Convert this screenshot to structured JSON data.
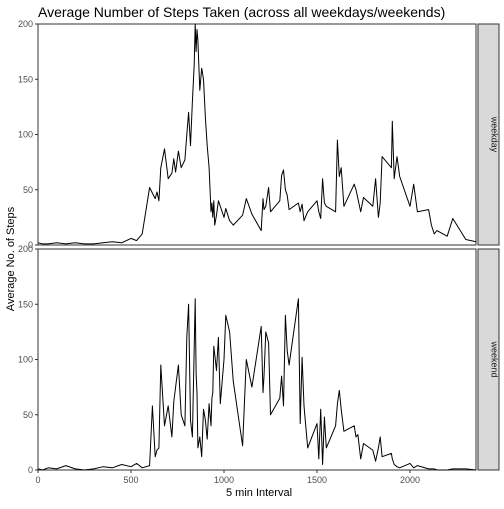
{
  "chart_data": {
    "type": "line",
    "title": "Average Number of Steps Taken (across all weekdays/weekends)",
    "xlabel": "5 min Interval",
    "ylabel": "Average No. of Steps",
    "xlim": [
      0,
      2355
    ],
    "ylim": [
      0,
      200
    ],
    "x_ticks": [
      0,
      500,
      1000,
      1500,
      2000
    ],
    "y_ticks": [
      0,
      50,
      100,
      150,
      200
    ],
    "grid": false,
    "facet_strip_position": "right",
    "panels": [
      {
        "name": "weekday",
        "x": [
          0,
          25,
          55,
          100,
          150,
          200,
          250,
          300,
          350,
          400,
          450,
          500,
          530,
          560,
          600,
          615,
          630,
          640,
          650,
          660,
          680,
          700,
          720,
          730,
          740,
          755,
          770,
          790,
          800,
          810,
          820,
          830,
          840,
          845,
          850,
          855,
          860,
          870,
          880,
          890,
          900,
          910,
          920,
          930,
          935,
          940,
          945,
          950,
          960,
          970,
          980,
          1000,
          1010,
          1030,
          1050,
          1100,
          1120,
          1150,
          1200,
          1210,
          1215,
          1225,
          1240,
          1250,
          1300,
          1310,
          1320,
          1330,
          1340,
          1350,
          1400,
          1410,
          1420,
          1430,
          1450,
          1500,
          1510,
          1520,
          1530,
          1540,
          1550,
          1600,
          1610,
          1620,
          1630,
          1645,
          1700,
          1710,
          1720,
          1735,
          1750,
          1800,
          1815,
          1830,
          1840,
          1850,
          1900,
          1905,
          1915,
          1930,
          1945,
          2000,
          2020,
          2040,
          2100,
          2115,
          2130,
          2145,
          2200,
          2230,
          2300,
          2355
        ],
        "y": [
          2,
          1,
          1,
          2,
          1,
          2,
          1,
          1,
          2,
          3,
          2,
          6,
          4,
          10,
          52,
          47,
          42,
          48,
          40,
          70,
          87,
          60,
          65,
          78,
          66,
          85,
          70,
          77,
          100,
          120,
          90,
          130,
          163,
          200,
          175,
          195,
          185,
          140,
          160,
          150,
          115,
          90,
          70,
          30,
          38,
          25,
          40,
          18,
          27,
          40,
          35,
          25,
          33,
          22,
          18,
          27,
          42,
          28,
          13,
          42,
          32,
          35,
          52,
          30,
          40,
          63,
          68,
          50,
          45,
          32,
          38,
          30,
          37,
          22,
          30,
          40,
          30,
          24,
          60,
          38,
          35,
          30,
          95,
          62,
          70,
          35,
          55,
          50,
          42,
          30,
          43,
          35,
          60,
          25,
          38,
          80,
          70,
          112,
          60,
          80,
          62,
          35,
          55,
          30,
          32,
          18,
          10,
          13,
          8,
          24,
          5,
          3
        ]
      },
      {
        "name": "weekend",
        "x": [
          0,
          25,
          55,
          100,
          150,
          200,
          250,
          300,
          350,
          400,
          450,
          500,
          530,
          560,
          600,
          615,
          630,
          640,
          650,
          660,
          680,
          700,
          720,
          730,
          740,
          755,
          770,
          790,
          800,
          810,
          820,
          830,
          840,
          845,
          850,
          855,
          860,
          870,
          880,
          890,
          900,
          910,
          920,
          930,
          935,
          940,
          945,
          950,
          960,
          970,
          980,
          1000,
          1010,
          1030,
          1050,
          1100,
          1120,
          1150,
          1200,
          1210,
          1215,
          1225,
          1240,
          1250,
          1300,
          1310,
          1320,
          1330,
          1340,
          1350,
          1400,
          1410,
          1420,
          1430,
          1450,
          1500,
          1510,
          1520,
          1530,
          1540,
          1550,
          1600,
          1610,
          1620,
          1630,
          1645,
          1700,
          1710,
          1720,
          1735,
          1750,
          1800,
          1815,
          1830,
          1840,
          1850,
          1900,
          1905,
          1915,
          1930,
          1945,
          2000,
          2020,
          2040,
          2100,
          2115,
          2130,
          2145,
          2200,
          2230,
          2300,
          2355
        ],
        "y": [
          1,
          0,
          2,
          1,
          4,
          1,
          0,
          1,
          3,
          2,
          5,
          3,
          6,
          2,
          4,
          58,
          12,
          18,
          20,
          95,
          40,
          58,
          30,
          62,
          75,
          95,
          50,
          40,
          120,
          150,
          45,
          30,
          110,
          155,
          88,
          70,
          20,
          30,
          12,
          55,
          45,
          28,
          60,
          40,
          65,
          70,
          112,
          105,
          90,
          120,
          60,
          100,
          140,
          125,
          80,
          22,
          100,
          75,
          130,
          70,
          85,
          125,
          115,
          50,
          65,
          85,
          58,
          140,
          108,
          95,
          155,
          42,
          102,
          58,
          20,
          42,
          10,
          55,
          5,
          48,
          20,
          40,
          60,
          72,
          55,
          35,
          40,
          30,
          32,
          10,
          24,
          18,
          8,
          20,
          30,
          12,
          15,
          10,
          5,
          3,
          2,
          6,
          2,
          4,
          1,
          1,
          1,
          0,
          0,
          1,
          1,
          0
        ]
      }
    ]
  }
}
